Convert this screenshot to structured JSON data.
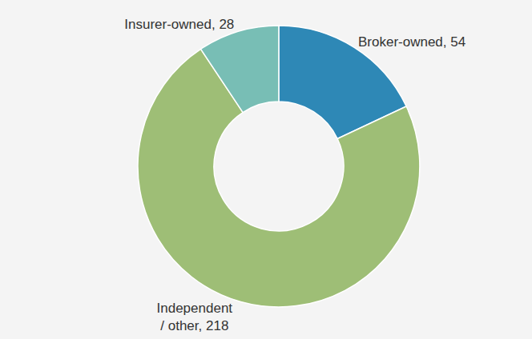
{
  "chart_data": {
    "type": "pie",
    "categories": [
      "Broker-owned",
      "Independent / other",
      "Insurer-owned"
    ],
    "values": [
      54,
      218,
      28
    ],
    "value_labels": [
      "Broker-owned, 54",
      "Independent / other, 218",
      "Insurer-owned, 28"
    ],
    "colors": [
      "#2e88b6",
      "#9ebe76",
      "#78beb5"
    ],
    "data_labels": true
  }
}
